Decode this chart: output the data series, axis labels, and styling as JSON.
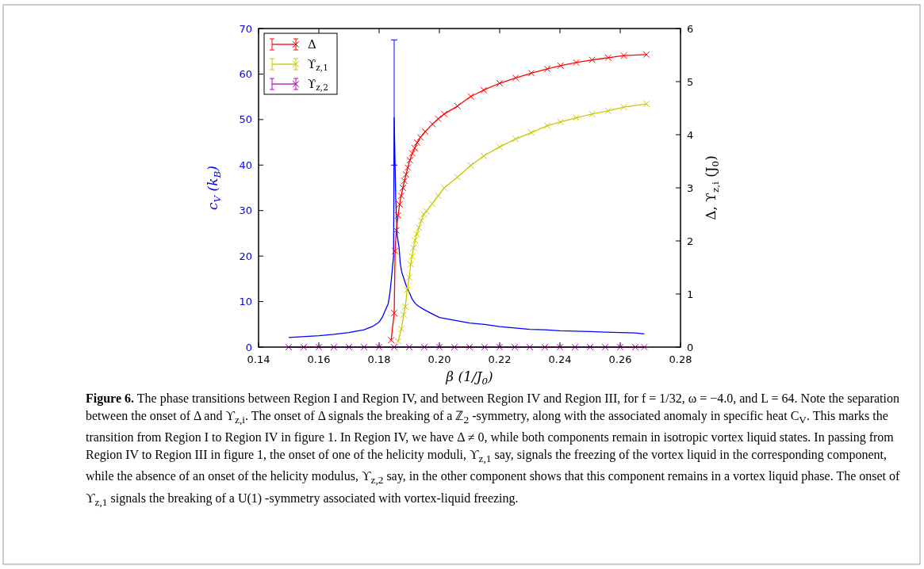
{
  "chart_data": {
    "type": "line",
    "xlabel": "β (1/J$_{0}$)",
    "ylabel": "c$_{V}$ (k$_{B}$)",
    "y2label": "Δ, ϒ$_{z,i}$ (J$_{0}$)",
    "xlim": [
      0.14,
      0.28
    ],
    "xticks": [
      {
        "value": 0.14,
        "label": "0.14"
      },
      {
        "value": 0.16,
        "label": "0.16"
      },
      {
        "value": 0.18,
        "label": "0.18"
      },
      {
        "value": 0.2,
        "label": "0.20"
      },
      {
        "value": 0.22,
        "label": "0.22"
      },
      {
        "value": 0.24,
        "label": "0.24"
      },
      {
        "value": 0.26,
        "label": "0.26"
      },
      {
        "value": 0.28,
        "label": "0.28"
      }
    ],
    "ylim": [
      0,
      70
    ],
    "yticks": [
      0,
      10,
      20,
      30,
      40,
      50,
      60,
      70
    ],
    "y2lim": [
      0,
      6
    ],
    "y2ticks": [
      0,
      1,
      2,
      3,
      4,
      5,
      6
    ],
    "legend": "top left",
    "grid": false,
    "line_style": "solid",
    "series": [
      {
        "color": "#0000ff",
        "marker": "none",
        "axis": "y",
        "x": [
          0.15,
          0.16,
          0.165,
          0.17,
          0.175,
          0.178,
          0.18,
          0.181,
          0.182,
          0.183,
          0.1835,
          0.184,
          0.1848,
          0.185,
          0.1855,
          0.186,
          0.1866,
          0.187,
          0.1875,
          0.188,
          0.189,
          0.19,
          0.191,
          0.192,
          0.193,
          0.195,
          0.197,
          0.2,
          0.205,
          0.21,
          0.215,
          0.22,
          0.225,
          0.23,
          0.235,
          0.24,
          0.245,
          0.25,
          0.255,
          0.26,
          0.265,
          0.268
        ],
        "values": [
          2.1,
          2.5,
          2.8,
          3.2,
          3.8,
          4.6,
          5.5,
          6.5,
          8,
          9.5,
          11.5,
          14.5,
          20,
          50.4,
          33,
          24.5,
          22,
          18.5,
          16.5,
          15.5,
          13.5,
          12,
          10.5,
          9.6,
          9,
          8.2,
          7.5,
          6.5,
          5.9,
          5.3,
          5,
          4.5,
          4.2,
          3.9,
          3.8,
          3.6,
          3.5,
          3.4,
          3.3,
          3.2,
          3.1,
          2.9
        ],
        "errors": [
          null,
          null,
          null,
          null,
          null,
          null,
          null,
          null,
          null,
          null,
          null,
          null,
          null,
          [
            40,
            67.5
          ],
          null,
          null,
          null,
          null,
          null,
          null,
          null,
          null,
          null,
          null,
          null,
          null,
          null,
          null,
          null,
          null,
          null,
          null,
          null,
          null,
          null,
          null,
          null,
          null,
          null,
          null,
          null,
          null
        ]
      },
      {
        "name": "Δ",
        "color": "#ff0000",
        "marker": "cross",
        "axis": "y2",
        "x": [
          0.184,
          0.185,
          0.1853,
          0.1857,
          0.1863,
          0.1868,
          0.1873,
          0.1879,
          0.1884,
          0.1889,
          0.1895,
          0.1902,
          0.191,
          0.1918,
          0.1926,
          0.1937,
          0.1953,
          0.1977,
          0.1996,
          0.2016,
          0.206,
          0.2104,
          0.2147,
          0.22,
          0.2253,
          0.2305,
          0.2358,
          0.2402,
          0.2454,
          0.2507,
          0.256,
          0.2612,
          0.2687
        ],
        "values": [
          0.13,
          0.64,
          1.81,
          2.2,
          2.48,
          2.69,
          2.85,
          3.0,
          3.13,
          3.25,
          3.38,
          3.52,
          3.65,
          3.75,
          3.85,
          3.95,
          4.06,
          4.2,
          4.3,
          4.39,
          4.54,
          4.72,
          4.84,
          4.97,
          5.07,
          5.16,
          5.24,
          5.3,
          5.36,
          5.41,
          5.45,
          5.49,
          5.51
        ]
      },
      {
        "name": "ϒ$_{z,1}$",
        "color": "#c8c800",
        "marker": "cross",
        "axis": "y2",
        "x": [
          0.1863,
          0.1874,
          0.1881,
          0.1887,
          0.1893,
          0.19,
          0.1905,
          0.1909,
          0.1914,
          0.1919,
          0.1925,
          0.1932,
          0.194,
          0.1948,
          0.1957,
          0.1976,
          0.1996,
          0.2016,
          0.206,
          0.2104,
          0.2147,
          0.22,
          0.2253,
          0.2305,
          0.2358,
          0.2402,
          0.2454,
          0.2507,
          0.256,
          0.2612,
          0.2687
        ],
        "values": [
          0.11,
          0.34,
          0.61,
          0.76,
          1.08,
          1.31,
          1.56,
          1.71,
          1.87,
          2.01,
          2.13,
          2.25,
          2.38,
          2.5,
          2.56,
          2.7,
          2.85,
          3.0,
          3.2,
          3.42,
          3.6,
          3.77,
          3.92,
          4.04,
          4.17,
          4.24,
          4.32,
          4.39,
          4.45,
          4.52,
          4.58
        ]
      },
      {
        "name": "ϒ$_{z,2}$",
        "color": "#c000c0",
        "marker": "cross",
        "axis": "y2",
        "x": [
          0.15,
          0.155,
          0.16,
          0.165,
          0.17,
          0.175,
          0.18,
          0.185,
          0.19,
          0.195,
          0.2,
          0.205,
          0.21,
          0.215,
          0.22,
          0.225,
          0.23,
          0.235,
          0.24,
          0.245,
          0.25,
          0.255,
          0.26,
          0.265,
          0.268
        ],
        "values": [
          0,
          0,
          0,
          0,
          0,
          0,
          0,
          0,
          0,
          0,
          0,
          0,
          0,
          0,
          0,
          0,
          0,
          0,
          0,
          0,
          0,
          0,
          0,
          0,
          0
        ]
      }
    ],
    "annotations": [
      "Figure 6.",
      "The phase transitions between Region I and Region IV, and between Region IV and Region III, for f = 1/32, ω = −4.0, and L = 64. Note the separation between the onset of Δ and ϒ$_{z,i}$. The onset of Δ signals the breaking of a ℤ$_{2}$ -symmetry, along with the associated anomaly in specific heat C$_{V}$. This marks the transition from Region I to Region IV in figure 1. In Region IV, we have Δ ≠ 0, while both components remain in isotropic vortex liquid states. In passing from Region IV to Region III in figure 1, the onset of one of the helicity moduli, ϒ$_{z,1}$ say, signals the freezing of the vortex liquid in the corresponding component, while the absence of an onset of the helicity modulus, ϒ$_{z,2}$ say, in the other component shows that this component remains in a vortex liquid phase. The onset of ϒ$_{z,1}$ signals the breaking of a U(1) -symmetry associated with vortex-liquid freezing."
    ]
  }
}
